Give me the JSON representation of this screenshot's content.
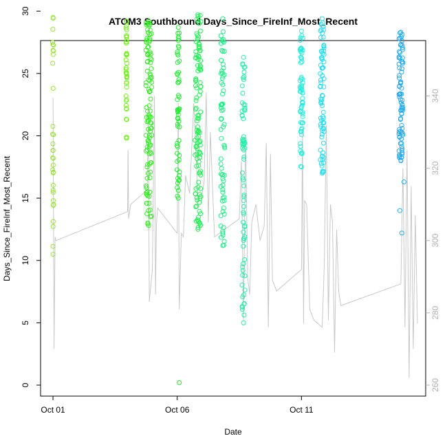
{
  "chart_data": {
    "type": "scatter",
    "title": "ATOM3 Southbound Days_Since_FireInf_Most_Recent",
    "xlabel": "Date",
    "ylabel": "Days_Since_FireInf_Most_Recent",
    "xlim": [
      "2013-09-30T12:00",
      "2013-10-16T00:00"
    ],
    "ylim": [
      0,
      30
    ],
    "y2lim": [
      260,
      340
    ],
    "x_ticks": [
      {
        "value": "2013-10-01",
        "label": "Oct 01"
      },
      {
        "value": "2013-10-06",
        "label": "Oct 06"
      },
      {
        "value": "2013-10-11",
        "label": "Oct 11"
      }
    ],
    "y_ticks": [
      0,
      5,
      10,
      15,
      20,
      25,
      30
    ],
    "y2_ticks": [
      260,
      280,
      300,
      320,
      340
    ],
    "grid": false,
    "legend": "none",
    "colors": {
      "line": "#c8c8c8",
      "axis": "#000000",
      "axis_right": "#b0b0b0"
    },
    "line_series": [
      [
        "2013-10-01T00:00",
        339.5
      ],
      [
        "2013-10-01T01:00",
        270
      ],
      [
        "2013-10-01T02:00",
        301
      ],
      [
        "2013-10-01T03:00",
        300
      ],
      [
        "2013-10-04T00:00",
        308
      ],
      [
        "2013-10-04T00:30",
        325
      ],
      [
        "2013-10-04T01:00",
        306
      ],
      [
        "2013-10-04T03:00",
        310
      ],
      [
        "2013-10-04T19:00",
        314
      ],
      [
        "2013-10-04T20:00",
        336
      ],
      [
        "2013-10-04T21:00",
        283
      ],
      [
        "2013-10-05T00:00",
        292
      ],
      [
        "2013-10-05T02:00",
        340
      ],
      [
        "2013-10-05T03:00",
        285
      ],
      [
        "2013-10-05T04:00",
        305
      ],
      [
        "2013-10-05T05:00",
        309
      ],
      [
        "2013-10-06T00:00",
        302
      ],
      [
        "2013-10-06T01:00",
        338
      ],
      [
        "2013-10-06T02:00",
        281
      ],
      [
        "2013-10-06T04:00",
        302
      ],
      [
        "2013-10-06T06:00",
        301
      ],
      [
        "2013-10-06T08:00",
        318
      ],
      [
        "2013-10-06T12:00",
        313
      ],
      [
        "2013-10-06T16:00",
        338
      ],
      [
        "2013-10-06T20:00",
        312
      ],
      [
        "2013-10-07T00:00",
        313
      ],
      [
        "2013-10-07T02:00",
        316
      ],
      [
        "2013-10-07T04:00",
        341
      ],
      [
        "2013-10-07T06:00",
        305
      ],
      [
        "2013-10-07T08:00",
        330
      ],
      [
        "2013-10-07T12:00",
        301
      ],
      [
        "2013-10-08T12:00",
        306
      ],
      [
        "2013-10-08T14:00",
        322
      ],
      [
        "2013-10-08T16:00",
        278
      ],
      [
        "2013-10-08T18:00",
        329
      ],
      [
        "2013-10-08T20:00",
        290
      ],
      [
        "2013-10-08T22:00",
        285
      ],
      [
        "2013-10-09T00:00",
        305
      ],
      [
        "2013-10-09T04:00",
        310
      ],
      [
        "2013-10-09T08:00",
        300
      ],
      [
        "2013-10-09T12:00",
        304
      ],
      [
        "2013-10-09T14:00",
        327
      ],
      [
        "2013-10-09T16:00",
        276
      ],
      [
        "2013-10-09T18:00",
        324
      ],
      [
        "2013-10-09T20:00",
        289
      ],
      [
        "2013-10-10T00:00",
        286
      ],
      [
        "2013-10-11T00:00",
        292
      ],
      [
        "2013-10-11T01:00",
        331
      ],
      [
        "2013-10-11T02:00",
        277
      ],
      [
        "2013-10-11T03:00",
        311
      ],
      [
        "2013-10-11T05:00",
        310
      ],
      [
        "2013-10-11T08:00",
        281
      ],
      [
        "2013-10-11T12:00",
        278
      ],
      [
        "2013-10-11T20:00",
        276
      ],
      [
        "2013-10-11T22:00",
        293
      ],
      [
        "2013-10-12T00:00",
        332
      ],
      [
        "2013-10-12T02:00",
        278
      ],
      [
        "2013-10-12T04:00",
        310
      ],
      [
        "2013-10-12T06:00",
        305
      ],
      [
        "2013-10-12T08:00",
        269
      ],
      [
        "2013-10-12T10:00",
        303
      ],
      [
        "2013-10-12T12:00",
        286
      ],
      [
        "2013-10-12T14:00",
        282
      ],
      [
        "2013-10-15T00:00",
        288
      ],
      [
        "2013-10-15T02:00",
        320
      ],
      [
        "2013-10-15T04:00",
        276
      ],
      [
        "2013-10-15T06:00",
        325
      ],
      [
        "2013-10-15T08:00",
        262
      ],
      [
        "2013-10-15T10:00",
        315
      ],
      [
        "2013-10-15T12:00",
        270
      ],
      [
        "2013-10-15T14:00",
        307
      ],
      [
        "2013-10-15T16:00",
        277
      ]
    ],
    "clusters": [
      {
        "center": "2013-10-01T00:00",
        "spread_days": 0.02,
        "y_range": [
          10.5,
          29.5
        ],
        "color": "#99e33a",
        "count": 30
      },
      {
        "center": "2013-10-03T23:00",
        "spread_days": 0.02,
        "y_range": [
          19.8,
          29.2
        ],
        "color": "#77ee22",
        "count": 40
      },
      {
        "center": "2013-10-04T20:30",
        "spread_days": 0.12,
        "y_range": [
          12.8,
          29.2
        ],
        "color": "#33ee22",
        "count": 110
      },
      {
        "center": "2013-10-06T01:00",
        "spread_days": 0.05,
        "y_range": [
          15.0,
          28.7
        ],
        "color": "#22ee33",
        "count": 55
      },
      {
        "center": "2013-10-06T20:00",
        "spread_days": 0.12,
        "y_range": [
          12.5,
          29.7
        ],
        "color": "#22ee55",
        "count": 110
      },
      {
        "center": "2013-10-07T20:00",
        "spread_days": 0.08,
        "y_range": [
          11.2,
          29.4
        ],
        "color": "#22ee88",
        "count": 70
      },
      {
        "center": "2013-10-08T16:00",
        "spread_days": 0.06,
        "y_range": [
          5.0,
          26.3
        ],
        "color": "#22eeaa",
        "count": 70
      },
      {
        "center": "2013-10-11T00:00",
        "spread_days": 0.06,
        "y_range": [
          17.5,
          28.4
        ],
        "color": "#22eedd",
        "count": 60
      },
      {
        "center": "2013-10-11T20:00",
        "spread_days": 0.08,
        "y_range": [
          17.0,
          29.4
        ],
        "color": "#22ddee",
        "count": 70
      },
      {
        "center": "2013-10-15T00:00",
        "spread_days": 0.08,
        "y_range": [
          18.0,
          28.3
        ],
        "color": "#22aaee",
        "count": 80
      }
    ],
    "extra_points": [
      {
        "x": "2013-10-06T02:00",
        "y": 0.2,
        "color": "#22ee33"
      },
      {
        "x": "2013-10-14T23:00",
        "y": 14.0,
        "color": "#22aaee"
      },
      {
        "x": "2013-10-15T01:00",
        "y": 12.2,
        "color": "#22aaee"
      },
      {
        "x": "2013-10-15T03:00",
        "y": 16.3,
        "color": "#22aaee"
      },
      {
        "x": "2013-10-01T00:30",
        "y": 14.5,
        "color": "#99e33a"
      },
      {
        "x": "2013-10-06T18:00",
        "y": 14.3,
        "color": "#22ee55"
      }
    ]
  }
}
